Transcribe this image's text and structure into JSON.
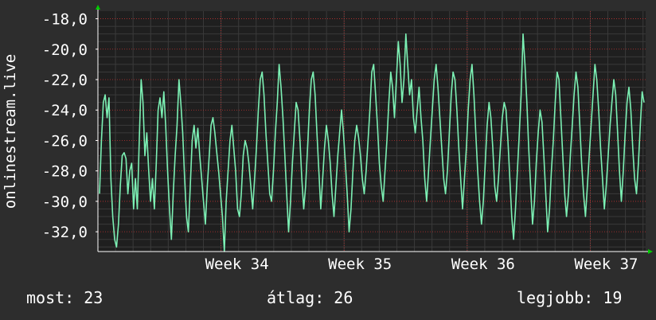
{
  "chart_data": {
    "type": "line",
    "ylabel": "onlinestream.live",
    "y_ticks": [
      "-18,0",
      "-20,0",
      "-22,0",
      "-24,0",
      "-26,0",
      "-28,0",
      "-30,0",
      "-32,0"
    ],
    "y_tick_values": [
      -18,
      -20,
      -22,
      -24,
      -26,
      -28,
      -30,
      -32
    ],
    "ylim": [
      -33.3,
      -17.5
    ],
    "x_ticks": [
      "Week 34",
      "Week 35",
      "Week 36",
      "Week 37"
    ],
    "x_tick_positions": [
      2.0,
      3.0,
      4.0,
      5.0
    ],
    "xlim": [
      1.0,
      5.45
    ],
    "grid": true,
    "colors": {
      "background": "#2d2d2d",
      "plot_background": "#1f1f1f",
      "line": "#7cf0b4",
      "grid": "#c03030",
      "axis_arrow": "#00cc00"
    },
    "series": [
      {
        "values": [
          -29.5,
          -26.0,
          -23.5,
          -23.0,
          -24.5,
          -23.2,
          -28.5,
          -31.0,
          -32.5,
          -33.0,
          -31.5,
          -29.0,
          -27.0,
          -26.8,
          -27.2,
          -29.5,
          -28.0,
          -27.5,
          -30.5,
          -28.5,
          -30.5,
          -26.0,
          -22.0,
          -23.5,
          -27.0,
          -25.5,
          -28.0,
          -30.0,
          -28.5,
          -30.5,
          -27.5,
          -24.0,
          -23.2,
          -24.5,
          -22.8,
          -25.0,
          -28.0,
          -30.5,
          -32.5,
          -29.5,
          -27.0,
          -25.0,
          -22.0,
          -23.5,
          -25.5,
          -28.5,
          -31.0,
          -32.0,
          -29.0,
          -26.0,
          -25.0,
          -26.5,
          -25.2,
          -27.0,
          -28.5,
          -30.0,
          -31.5,
          -29.0,
          -27.0,
          -25.0,
          -24.5,
          -25.5,
          -26.8,
          -28.0,
          -29.5,
          -31.0,
          -33.3,
          -30.0,
          -28.0,
          -26.0,
          -25.0,
          -26.5,
          -28.0,
          -30.5,
          -31.0,
          -29.5,
          -27.0,
          -26.0,
          -26.5,
          -27.5,
          -29.0,
          -30.5,
          -28.5,
          -26.5,
          -24.0,
          -22.0,
          -21.5,
          -23.0,
          -25.5,
          -27.5,
          -29.5,
          -30.0,
          -28.0,
          -25.5,
          -23.5,
          -21.0,
          -22.5,
          -24.5,
          -27.0,
          -29.5,
          -32.0,
          -30.0,
          -27.5,
          -25.5,
          -23.5,
          -24.0,
          -26.0,
          -28.5,
          -30.5,
          -29.0,
          -26.5,
          -24.0,
          -22.0,
          -21.5,
          -23.0,
          -25.5,
          -28.0,
          -30.5,
          -28.5,
          -26.5,
          -25.0,
          -26.0,
          -27.5,
          -29.5,
          -31.0,
          -29.0,
          -27.0,
          -25.5,
          -24.0,
          -25.5,
          -27.5,
          -29.5,
          -32.0,
          -30.5,
          -28.0,
          -26.0,
          -25.0,
          -25.8,
          -27.0,
          -28.5,
          -29.5,
          -28.0,
          -26.0,
          -24.0,
          -21.5,
          -21.0,
          -23.0,
          -25.0,
          -27.5,
          -29.0,
          -30.0,
          -28.0,
          -26.0,
          -23.5,
          -21.5,
          -22.5,
          -24.5,
          -22.0,
          -19.5,
          -21.0,
          -23.5,
          -22.0,
          -19.0,
          -21.0,
          -23.0,
          -22.0,
          -24.5,
          -25.5,
          -24.0,
          -22.5,
          -24.5,
          -26.0,
          -28.5,
          -30.0,
          -28.0,
          -26.0,
          -24.0,
          -22.0,
          -21.0,
          -22.5,
          -24.5,
          -26.5,
          -28.5,
          -29.5,
          -28.0,
          -25.5,
          -23.0,
          -21.5,
          -22.0,
          -24.0,
          -26.5,
          -28.5,
          -30.5,
          -28.5,
          -26.5,
          -24.0,
          -22.0,
          -21.0,
          -23.0,
          -25.5,
          -28.0,
          -30.0,
          -31.5,
          -30.0,
          -27.5,
          -25.0,
          -23.5,
          -24.5,
          -26.5,
          -29.0,
          -30.0,
          -28.5,
          -26.5,
          -24.5,
          -23.5,
          -24.0,
          -26.0,
          -28.5,
          -31.0,
          -32.5,
          -30.5,
          -28.0,
          -25.5,
          -23.0,
          -19.0,
          -21.0,
          -23.5,
          -26.5,
          -29.0,
          -31.5,
          -30.0,
          -27.5,
          -25.5,
          -24.0,
          -24.8,
          -27.0,
          -29.5,
          -32.0,
          -30.5,
          -28.0,
          -26.0,
          -23.5,
          -21.5,
          -22.0,
          -24.5,
          -27.0,
          -29.5,
          -31.0,
          -29.5,
          -27.0,
          -25.0,
          -23.0,
          -21.5,
          -22.5,
          -25.0,
          -27.5,
          -29.5,
          -31.0,
          -29.0,
          -27.0,
          -25.0,
          -23.0,
          -21.0,
          -22.0,
          -24.0,
          -26.5,
          -28.5,
          -30.5,
          -29.0,
          -27.0,
          -25.0,
          -23.5,
          -22.0,
          -23.0,
          -25.5,
          -28.0,
          -30.0,
          -28.0,
          -25.5,
          -23.5,
          -22.5,
          -24.0,
          -26.5,
          -28.5,
          -29.5,
          -27.5,
          -25.0,
          -22.8,
          -23.5
        ]
      }
    ]
  },
  "legend": {
    "current": "most: 23",
    "average": "átlag: 26",
    "best": "legjobb: 19"
  }
}
